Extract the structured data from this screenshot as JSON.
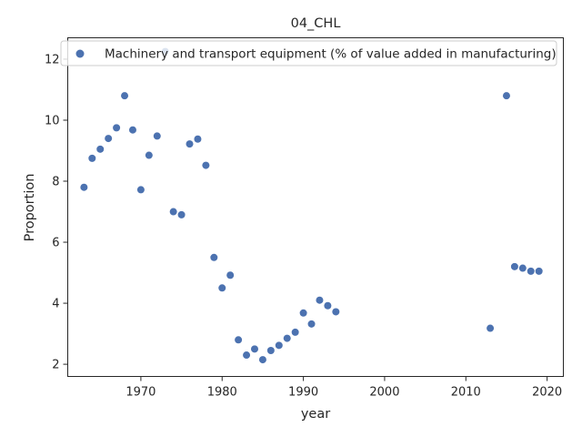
{
  "chart_data": {
    "type": "scatter",
    "title": "04_CHL",
    "xlabel": "year",
    "ylabel": "Proportion",
    "xlim": [
      1961,
      2022
    ],
    "ylim": [
      1.6,
      12.7
    ],
    "xticks": [
      1970,
      1980,
      1990,
      2000,
      2010,
      2020
    ],
    "yticks": [
      2,
      4,
      6,
      8,
      10,
      12
    ],
    "grid": false,
    "legend_position": "top",
    "series": [
      {
        "name": "Machinery and transport equipment (% of value added in manufacturing)",
        "color": "#4c72b0",
        "points": [
          {
            "x": 1963,
            "y": 7.8
          },
          {
            "x": 1964,
            "y": 8.75
          },
          {
            "x": 1965,
            "y": 9.05
          },
          {
            "x": 1966,
            "y": 9.4
          },
          {
            "x": 1967,
            "y": 9.75
          },
          {
            "x": 1968,
            "y": 10.8
          },
          {
            "x": 1969,
            "y": 9.68
          },
          {
            "x": 1970,
            "y": 7.72
          },
          {
            "x": 1971,
            "y": 8.85
          },
          {
            "x": 1972,
            "y": 9.48
          },
          {
            "x": 1973,
            "y": 12.25
          },
          {
            "x": 1974,
            "y": 7.0
          },
          {
            "x": 1975,
            "y": 6.9
          },
          {
            "x": 1976,
            "y": 9.22
          },
          {
            "x": 1977,
            "y": 9.38
          },
          {
            "x": 1978,
            "y": 8.52
          },
          {
            "x": 1979,
            "y": 5.5
          },
          {
            "x": 1980,
            "y": 4.5
          },
          {
            "x": 1981,
            "y": 4.92
          },
          {
            "x": 1982,
            "y": 2.8
          },
          {
            "x": 1983,
            "y": 2.3
          },
          {
            "x": 1984,
            "y": 2.5
          },
          {
            "x": 1985,
            "y": 2.15
          },
          {
            "x": 1986,
            "y": 2.45
          },
          {
            "x": 1987,
            "y": 2.62
          },
          {
            "x": 1988,
            "y": 2.85
          },
          {
            "x": 1989,
            "y": 3.05
          },
          {
            "x": 1990,
            "y": 3.68
          },
          {
            "x": 1991,
            "y": 3.32
          },
          {
            "x": 1992,
            "y": 4.1
          },
          {
            "x": 1993,
            "y": 3.92
          },
          {
            "x": 1994,
            "y": 3.72
          },
          {
            "x": 2013,
            "y": 3.18
          },
          {
            "x": 2015,
            "y": 10.8
          },
          {
            "x": 2016,
            "y": 5.2
          },
          {
            "x": 2017,
            "y": 5.15
          },
          {
            "x": 2018,
            "y": 5.05
          },
          {
            "x": 2019,
            "y": 5.05
          }
        ]
      }
    ]
  }
}
